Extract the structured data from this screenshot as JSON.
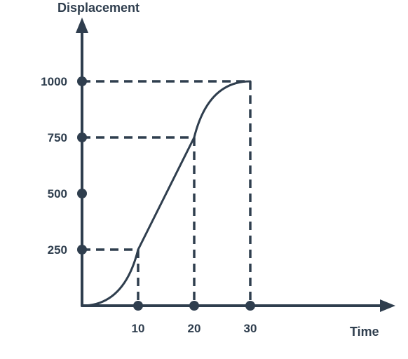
{
  "chart_data": {
    "type": "line",
    "title": "",
    "xlabel": "Time",
    "ylabel": "Displacement",
    "xlim": [
      0,
      30
    ],
    "ylim": [
      0,
      1000
    ],
    "x_ticks": [
      "10",
      "20",
      "30"
    ],
    "y_ticks": [
      "250",
      "500",
      "750",
      "1000"
    ],
    "grid": false,
    "series": [
      {
        "segments": [
          {
            "shape": "curve-accelerating",
            "from": [
              0,
              0
            ],
            "to": [
              10,
              250
            ]
          },
          {
            "shape": "straight",
            "from": [
              10,
              250
            ],
            "to": [
              20,
              750
            ]
          },
          {
            "shape": "curve-decelerating",
            "from": [
              20,
              750
            ],
            "to": [
              30,
              1000
            ]
          }
        ]
      }
    ],
    "guides": [
      {
        "x": 10,
        "y": 250
      },
      {
        "x": 20,
        "y": 750
      },
      {
        "x": 30,
        "y": 1000
      }
    ]
  },
  "colors": {
    "ink": "#2f3e4e",
    "background": "#ffffff"
  }
}
